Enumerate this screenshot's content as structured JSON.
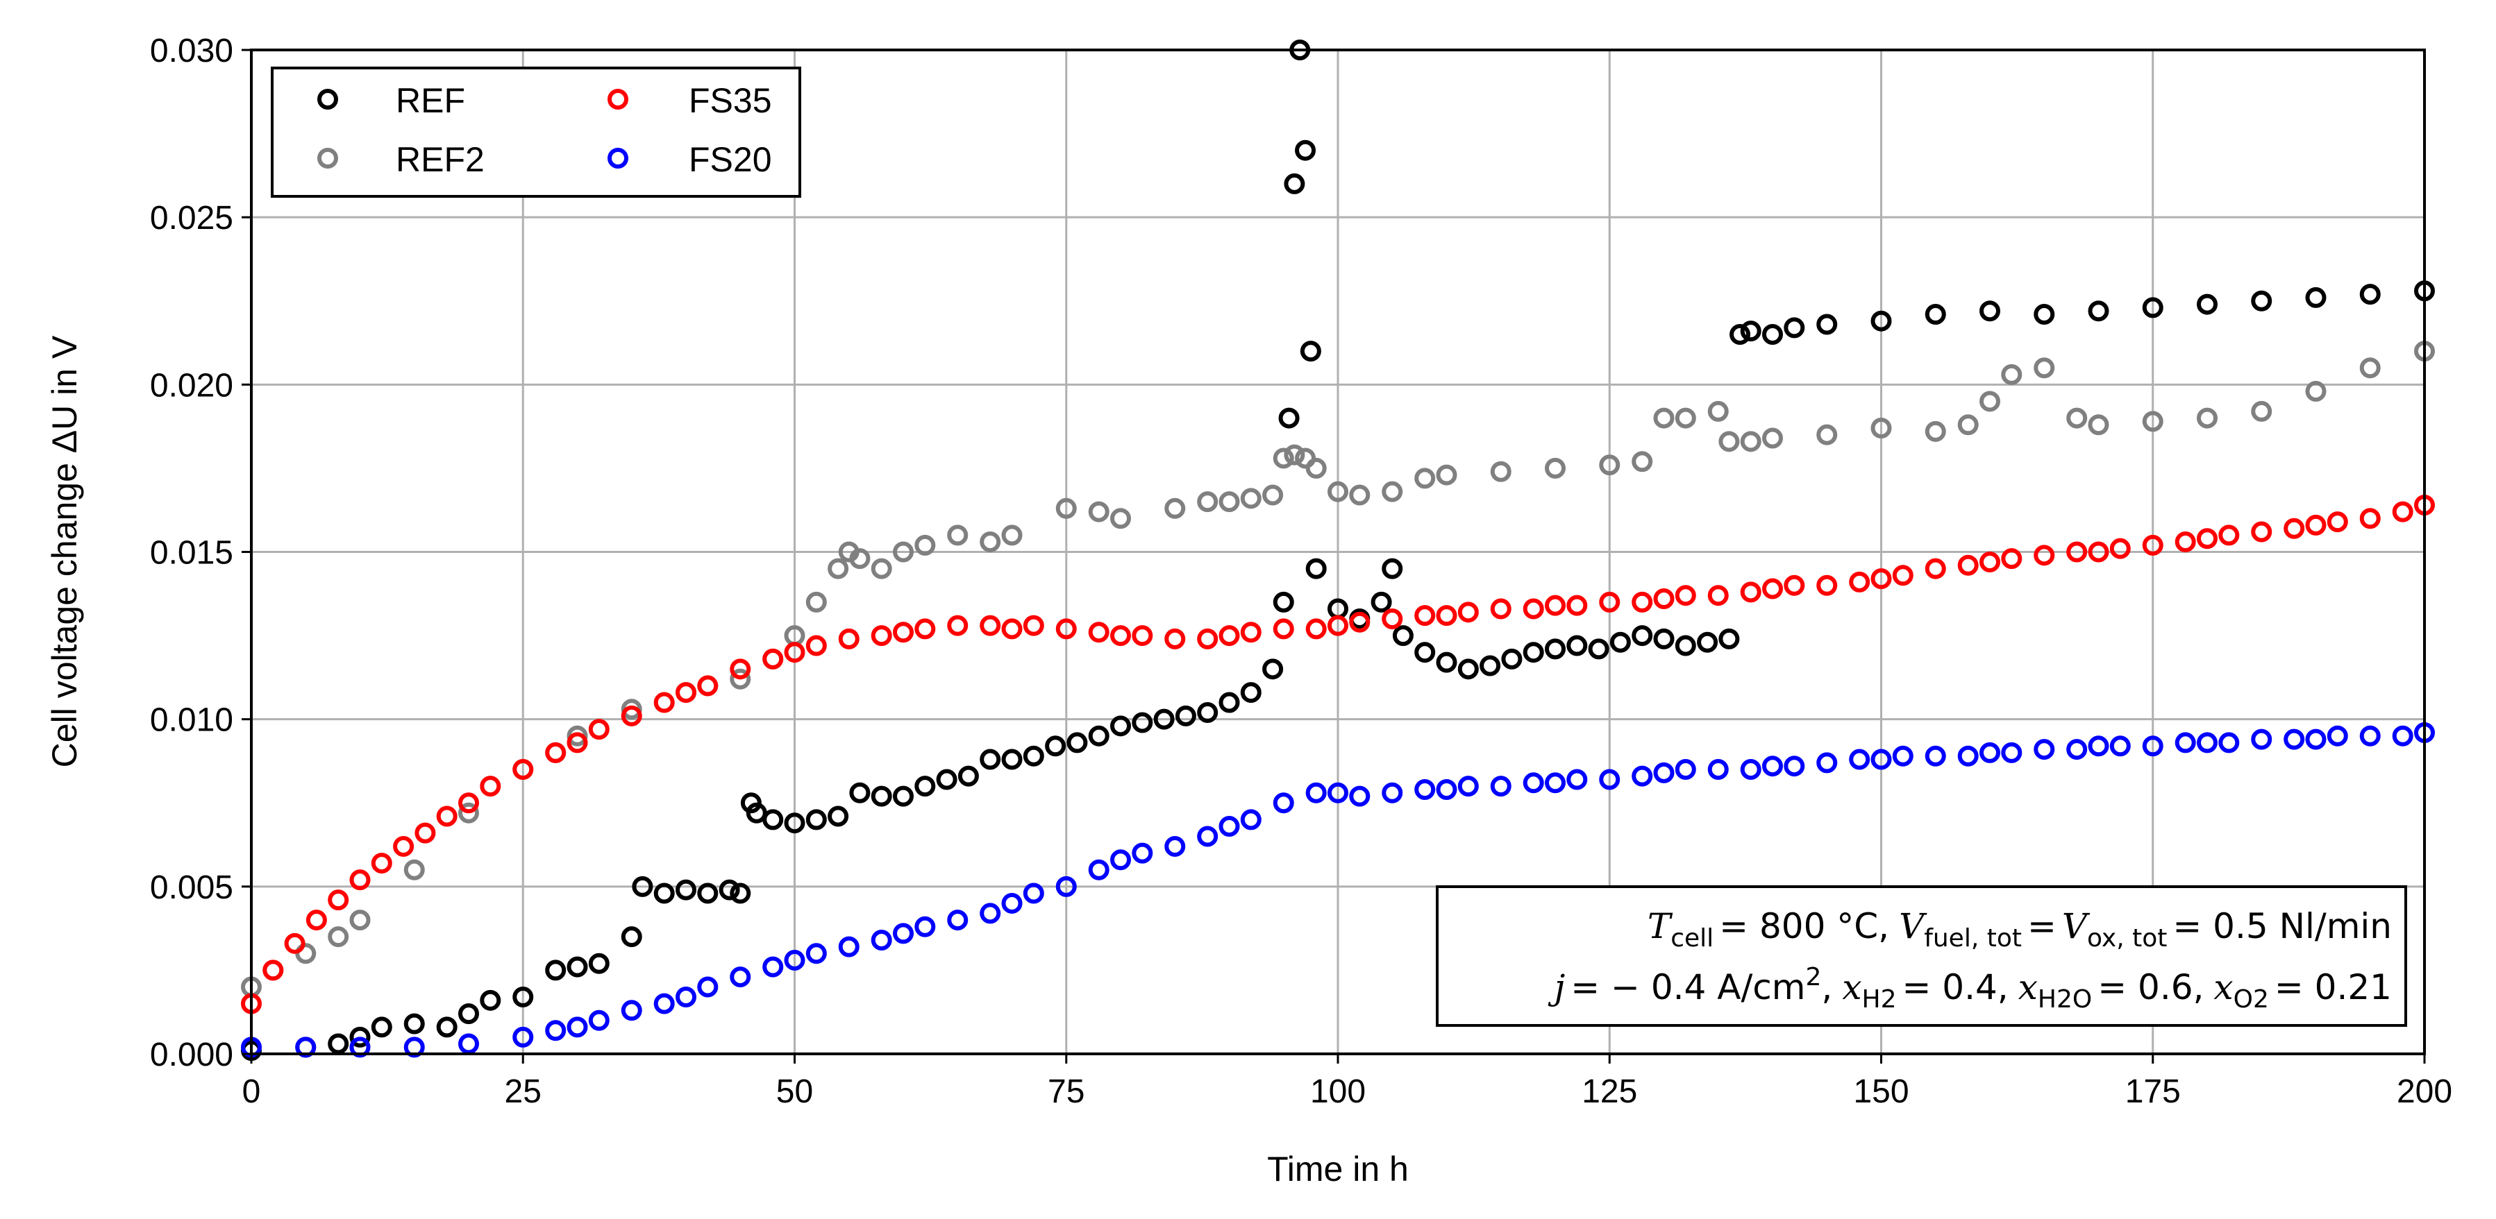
{
  "chart_data": {
    "type": "scatter",
    "xlabel": "Time in h",
    "ylabel": "Cell voltage change ΔU in V",
    "xlim": [
      0,
      200
    ],
    "ylim": [
      0,
      0.03
    ],
    "xticks": [
      0,
      25,
      50,
      75,
      100,
      125,
      150,
      175,
      200
    ],
    "xtick_labels": [
      "0",
      "25",
      "50",
      "75",
      "100",
      "125",
      "150",
      "175",
      "200"
    ],
    "yticks": [
      0,
      0.005,
      0.01,
      0.015,
      0.02,
      0.025,
      0.03
    ],
    "ytick_labels": [
      "0.000",
      "0.005",
      "0.010",
      "0.015",
      "0.020",
      "0.025",
      "0.030"
    ],
    "grid": true,
    "legend_position": "top-left",
    "marker": "open-circle",
    "series": [
      {
        "name": "REF",
        "color": "#000000",
        "x": [
          0,
          5,
          8,
          10,
          12,
          15,
          18,
          20,
          22,
          25,
          28,
          30,
          32,
          35,
          36,
          38,
          40,
          42,
          44,
          45,
          46,
          46.5,
          48,
          50,
          52,
          54,
          56,
          58,
          60,
          62,
          64,
          66,
          68,
          70,
          72,
          74,
          76,
          78,
          80,
          82,
          84,
          86,
          88,
          90,
          92,
          94,
          95,
          95.5,
          96,
          96.5,
          97,
          97.5,
          98,
          100,
          102,
          104,
          105,
          106,
          108,
          110,
          112,
          114,
          116,
          118,
          120,
          122,
          124,
          126,
          128,
          130,
          132,
          134,
          136,
          137,
          138,
          140,
          142,
          145,
          150,
          155,
          160,
          165,
          170,
          175,
          180,
          185,
          190,
          195,
          200
        ],
        "y": [
          0.0001,
          0.0002,
          0.0003,
          0.0005,
          0.0008,
          0.0009,
          0.0008,
          0.0012,
          0.0016,
          0.0017,
          0.0025,
          0.0026,
          0.0027,
          0.0035,
          0.005,
          0.0048,
          0.0049,
          0.0048,
          0.0049,
          0.0048,
          0.0075,
          0.0072,
          0.007,
          0.0069,
          0.007,
          0.0071,
          0.0078,
          0.0077,
          0.0077,
          0.008,
          0.0082,
          0.0083,
          0.0088,
          0.0088,
          0.0089,
          0.0092,
          0.0093,
          0.0095,
          0.0098,
          0.0099,
          0.01,
          0.0101,
          0.0102,
          0.0105,
          0.0108,
          0.0115,
          0.0135,
          0.019,
          0.026,
          0.03,
          0.027,
          0.021,
          0.0145,
          0.0133,
          0.013,
          0.0135,
          0.0145,
          0.0125,
          0.012,
          0.0117,
          0.0115,
          0.0116,
          0.0118,
          0.012,
          0.0121,
          0.0122,
          0.0121,
          0.0123,
          0.0125,
          0.0124,
          0.0122,
          0.0123,
          0.0124,
          0.0215,
          0.0216,
          0.0215,
          0.0217,
          0.0218,
          0.0219,
          0.0221,
          0.0222,
          0.0221,
          0.0222,
          0.0223,
          0.0224,
          0.0225,
          0.0226,
          0.0227,
          0.0228
        ]
      },
      {
        "name": "REF2",
        "color": "#808080",
        "x": [
          0,
          2,
          5,
          8,
          10,
          15,
          20,
          25,
          28,
          30,
          35,
          40,
          42,
          45,
          48,
          50,
          52,
          54,
          55,
          56,
          58,
          60,
          62,
          65,
          68,
          70,
          75,
          78,
          80,
          85,
          88,
          90,
          92,
          94,
          95,
          96,
          97,
          98,
          100,
          102,
          105,
          108,
          110,
          115,
          120,
          125,
          128,
          130,
          132,
          135,
          136,
          138,
          140,
          145,
          150,
          155,
          158,
          160,
          162,
          165,
          168,
          170,
          175,
          180,
          185,
          190,
          195,
          200
        ],
        "y": [
          0.002,
          0.0025,
          0.003,
          0.0035,
          0.004,
          0.0055,
          0.0072,
          0.0085,
          0.009,
          0.0095,
          0.0103,
          0.0108,
          0.011,
          0.0112,
          0.0118,
          0.0125,
          0.0135,
          0.0145,
          0.015,
          0.0148,
          0.0145,
          0.015,
          0.0152,
          0.0155,
          0.0153,
          0.0155,
          0.0163,
          0.0162,
          0.016,
          0.0163,
          0.0165,
          0.0165,
          0.0166,
          0.0167,
          0.0178,
          0.0179,
          0.0178,
          0.0175,
          0.0168,
          0.0167,
          0.0168,
          0.0172,
          0.0173,
          0.0174,
          0.0175,
          0.0176,
          0.0177,
          0.019,
          0.019,
          0.0192,
          0.0183,
          0.0183,
          0.0184,
          0.0185,
          0.0187,
          0.0186,
          0.0188,
          0.0195,
          0.0203,
          0.0205,
          0.019,
          0.0188,
          0.0189,
          0.019,
          0.0192,
          0.0198,
          0.0205,
          0.021
        ]
      },
      {
        "name": "FS35",
        "color": "#ff0000",
        "x": [
          0,
          2,
          4,
          6,
          8,
          10,
          12,
          14,
          16,
          18,
          20,
          22,
          25,
          28,
          30,
          32,
          35,
          38,
          40,
          42,
          45,
          48,
          50,
          52,
          55,
          58,
          60,
          62,
          65,
          68,
          70,
          72,
          75,
          78,
          80,
          82,
          85,
          88,
          90,
          92,
          95,
          98,
          100,
          102,
          105,
          108,
          110,
          112,
          115,
          118,
          120,
          122,
          125,
          128,
          130,
          132,
          135,
          138,
          140,
          142,
          145,
          148,
          150,
          152,
          155,
          158,
          160,
          162,
          165,
          168,
          170,
          172,
          175,
          178,
          180,
          182,
          185,
          188,
          190,
          192,
          195,
          198,
          200
        ],
        "y": [
          0.0015,
          0.0025,
          0.0033,
          0.004,
          0.0046,
          0.0052,
          0.0057,
          0.0062,
          0.0066,
          0.0071,
          0.0075,
          0.008,
          0.0085,
          0.009,
          0.0093,
          0.0097,
          0.0101,
          0.0105,
          0.0108,
          0.011,
          0.0115,
          0.0118,
          0.012,
          0.0122,
          0.0124,
          0.0125,
          0.0126,
          0.0127,
          0.0128,
          0.0128,
          0.0127,
          0.0128,
          0.0127,
          0.0126,
          0.0125,
          0.0125,
          0.0124,
          0.0124,
          0.0125,
          0.0126,
          0.0127,
          0.0127,
          0.0128,
          0.0129,
          0.013,
          0.0131,
          0.0131,
          0.0132,
          0.0133,
          0.0133,
          0.0134,
          0.0134,
          0.0135,
          0.0135,
          0.0136,
          0.0137,
          0.0137,
          0.0138,
          0.0139,
          0.014,
          0.014,
          0.0141,
          0.0142,
          0.0143,
          0.0145,
          0.0146,
          0.0147,
          0.0148,
          0.0149,
          0.015,
          0.015,
          0.0151,
          0.0152,
          0.0153,
          0.0154,
          0.0155,
          0.0156,
          0.0157,
          0.0158,
          0.0159,
          0.016,
          0.0162,
          0.0164
        ]
      },
      {
        "name": "FS20",
        "color": "#0000ff",
        "x": [
          0,
          5,
          10,
          15,
          20,
          25,
          28,
          30,
          32,
          35,
          38,
          40,
          42,
          45,
          48,
          50,
          52,
          55,
          58,
          60,
          62,
          65,
          68,
          70,
          72,
          75,
          78,
          80,
          82,
          85,
          88,
          90,
          92,
          95,
          98,
          100,
          102,
          105,
          108,
          110,
          112,
          115,
          118,
          120,
          122,
          125,
          128,
          130,
          132,
          135,
          138,
          140,
          142,
          145,
          148,
          150,
          152,
          155,
          158,
          160,
          162,
          165,
          168,
          170,
          172,
          175,
          178,
          180,
          182,
          185,
          188,
          190,
          192,
          195,
          198,
          200
        ],
        "y": [
          0.0002,
          0.0002,
          0.0002,
          0.0002,
          0.0003,
          0.0005,
          0.0007,
          0.0008,
          0.001,
          0.0013,
          0.0015,
          0.0017,
          0.002,
          0.0023,
          0.0026,
          0.0028,
          0.003,
          0.0032,
          0.0034,
          0.0036,
          0.0038,
          0.004,
          0.0042,
          0.0045,
          0.0048,
          0.005,
          0.0055,
          0.0058,
          0.006,
          0.0062,
          0.0065,
          0.0068,
          0.007,
          0.0075,
          0.0078,
          0.0078,
          0.0077,
          0.0078,
          0.0079,
          0.0079,
          0.008,
          0.008,
          0.0081,
          0.0081,
          0.0082,
          0.0082,
          0.0083,
          0.0084,
          0.0085,
          0.0085,
          0.0085,
          0.0086,
          0.0086,
          0.0087,
          0.0088,
          0.0088,
          0.0089,
          0.0089,
          0.0089,
          0.009,
          0.009,
          0.0091,
          0.0091,
          0.0092,
          0.0092,
          0.0092,
          0.0093,
          0.0093,
          0.0093,
          0.0094,
          0.0094,
          0.0094,
          0.0095,
          0.0095,
          0.0095,
          0.0096
        ]
      }
    ],
    "annotation": {
      "line1": {
        "T_sym": "T",
        "T_sub": "cell",
        "T_val": "= 800 °C,",
        "V1_sym": "V",
        "V1_sub": "fuel, tot",
        "eq1": "=",
        "V2_sym": "V",
        "V2_sub": "ox, tot",
        "eq2": "= 0.5 Nl/min"
      },
      "line2": {
        "j_sym": "j",
        "j_val": "= − 0.4 A/cm",
        "j_sup": "2",
        "comma0": ",",
        "x1_sym": "x",
        "x1_sub": "H2",
        "x1_val": "= 0.4,",
        "x2_sym": "x",
        "x2_sub": "H2O",
        "x2_val": "= 0.6,",
        "x3_sym": "x",
        "x3_sub": "O2",
        "x3_val": "= 0.21"
      }
    }
  }
}
